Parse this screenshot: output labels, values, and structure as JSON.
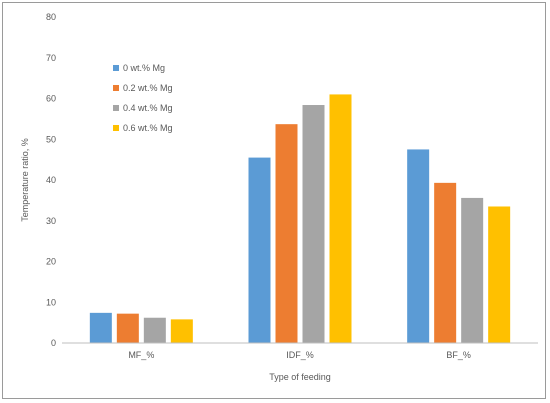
{
  "chart_data": {
    "type": "bar",
    "title": "",
    "xlabel": "Type of feeding",
    "ylabel": "Temperature ratio, %",
    "ylim": [
      0,
      80
    ],
    "yticks": [
      0,
      10,
      20,
      30,
      40,
      50,
      60,
      70,
      80
    ],
    "grid": false,
    "legend_position": "top-left",
    "categories": [
      "MF_%",
      "IDF_%",
      "BF_%"
    ],
    "series": [
      {
        "name": "0 wt.% Mg",
        "color": "#5b9bd5",
        "values": [
          7.4,
          45.5,
          47.5
        ]
      },
      {
        "name": "0.2 wt.% Mg",
        "color": "#ed7d31",
        "values": [
          7.2,
          53.7,
          39.3
        ]
      },
      {
        "name": "0.4 wt.% Mg",
        "color": "#a5a5a5",
        "values": [
          6.2,
          58.4,
          35.6
        ]
      },
      {
        "name": "0.6 wt.% Mg",
        "color": "#ffc000",
        "values": [
          5.8,
          61.0,
          33.5
        ]
      }
    ]
  }
}
